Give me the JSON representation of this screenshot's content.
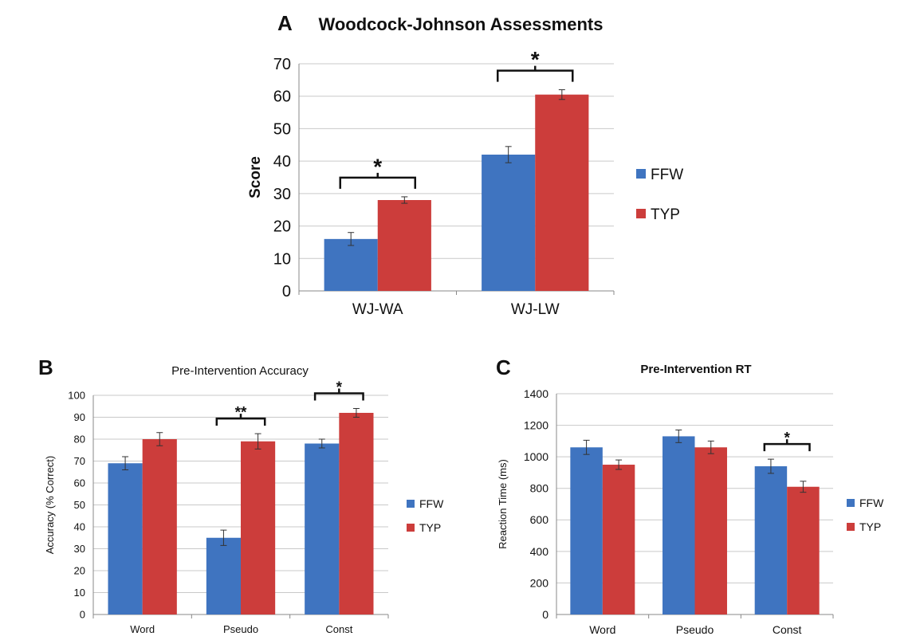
{
  "colors": {
    "FFW": "#3f74c0",
    "TYP": "#cc3d3b",
    "grid": "#c9c9c9",
    "axis": "#888888"
  },
  "chart_data": [
    {
      "panel": "A",
      "type": "bar",
      "title": "Woodcock-Johnson Assessments",
      "xlabel": "",
      "ylabel": "Score",
      "categories": [
        "WJ-WA",
        "WJ-LW"
      ],
      "series": [
        {
          "name": "FFW",
          "values": [
            16,
            42
          ],
          "error": [
            2,
            2.5
          ]
        },
        {
          "name": "TYP",
          "values": [
            28,
            60.5
          ],
          "error": [
            1,
            1.5
          ]
        }
      ],
      "ylim": [
        0,
        70
      ],
      "yticks": [
        0,
        10,
        20,
        30,
        40,
        50,
        60,
        70
      ],
      "grid": true,
      "legend": "right",
      "significance": [
        {
          "category": "WJ-WA",
          "label": "*"
        },
        {
          "category": "WJ-LW",
          "label": "*"
        }
      ]
    },
    {
      "panel": "B",
      "type": "bar",
      "title": "Pre-Intervention Accuracy",
      "xlabel": "",
      "ylabel": "Accuracy (% Correct)",
      "categories": [
        "Word",
        "Pseudo",
        "Const"
      ],
      "series": [
        {
          "name": "FFW",
          "values": [
            69,
            35,
            78
          ],
          "error": [
            3,
            3.5,
            2
          ]
        },
        {
          "name": "TYP",
          "values": [
            80,
            79,
            92
          ],
          "error": [
            3,
            3.5,
            2
          ]
        }
      ],
      "ylim": [
        0,
        100
      ],
      "yticks": [
        0,
        10,
        20,
        30,
        40,
        50,
        60,
        70,
        80,
        90,
        100
      ],
      "grid": true,
      "legend": "right",
      "significance": [
        {
          "category": "Pseudo",
          "label": "**"
        },
        {
          "category": "Const",
          "label": "*"
        }
      ]
    },
    {
      "panel": "C",
      "type": "bar",
      "title": "Pre-Intervention RT",
      "xlabel": "",
      "ylabel": "Reaction Time (ms)",
      "categories": [
        "Word",
        "Pseudo",
        "Const"
      ],
      "series": [
        {
          "name": "FFW",
          "values": [
            1060,
            1130,
            940
          ],
          "error": [
            45,
            40,
            45
          ]
        },
        {
          "name": "TYP",
          "values": [
            950,
            1060,
            810
          ],
          "error": [
            30,
            40,
            35
          ]
        }
      ],
      "ylim": [
        0,
        1400
      ],
      "yticks": [
        0,
        200,
        400,
        600,
        800,
        1000,
        1200,
        1400
      ],
      "grid": true,
      "legend": "right",
      "significance": [
        {
          "category": "Const",
          "label": "*"
        }
      ]
    }
  ]
}
